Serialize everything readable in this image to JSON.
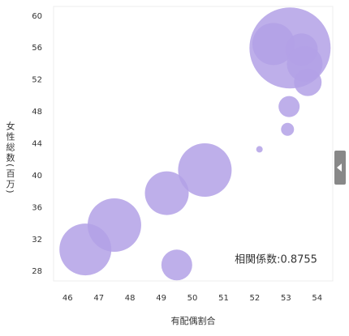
{
  "chart_data": {
    "type": "scatter",
    "x_label": "有配偶割合",
    "y_label": "女性総数(百万)",
    "annotation": "相関係数:0.8755",
    "color": "#b3a1e6",
    "x": [
      46.57,
      47.5,
      49.5,
      49.18,
      50.4,
      52.15,
      53.05,
      53.1,
      53.7,
      53.13,
      52.6,
      53.5,
      53.6
    ],
    "values": [
      30.75,
      33.8,
      28.8,
      37.8,
      40.7,
      43.3,
      45.8,
      48.65,
      51.7,
      56.0,
      56.5,
      55.8,
      54.0
    ],
    "sizes": [
      32,
      33,
      19,
      27,
      33,
      4,
      8,
      13,
      17,
      50,
      26,
      20,
      22
    ],
    "xlim": [
      45.55,
      54.5
    ],
    "xticks": [
      46,
      47,
      48,
      49,
      50,
      51,
      52,
      53,
      54
    ],
    "ylim": [
      26.8,
      61.2
    ],
    "yticks": [
      28,
      32,
      36,
      40,
      44,
      48,
      52,
      56,
      60
    ]
  }
}
